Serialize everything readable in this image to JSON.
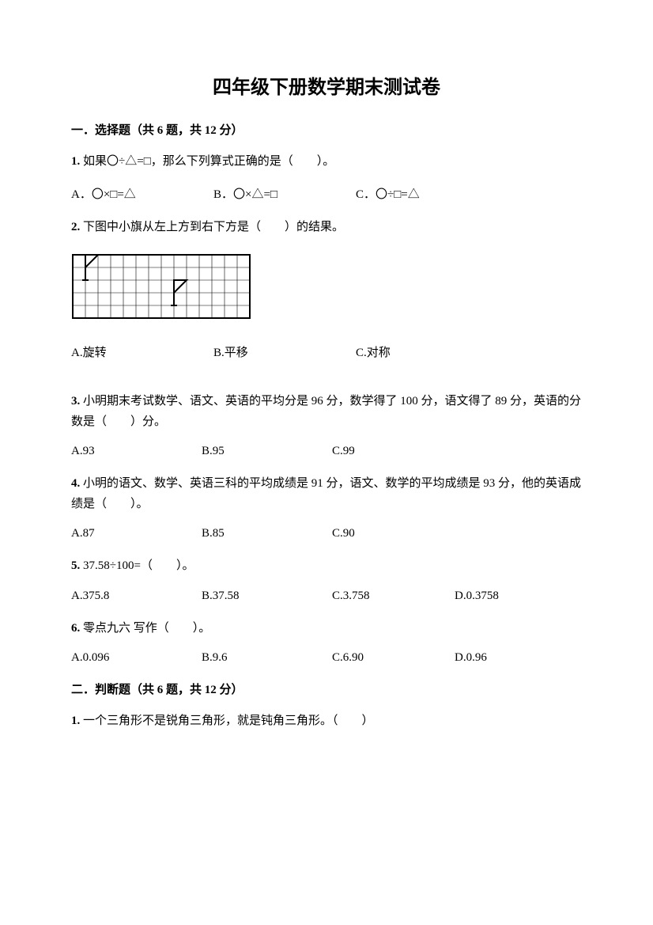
{
  "title": "四年级下册数学期末测试卷",
  "section1": {
    "header": "一．选择题（共 6 题，共 12 分）",
    "q1": {
      "num": "1.",
      "text": "如果〇÷△=□，那么下列算式正确的是（　　）。",
      "a": "A．〇×□=△",
      "b": "B．〇×△=□",
      "c": "C．〇÷□=△"
    },
    "q2": {
      "num": "2.",
      "text": "下图中小旗从左上方到右下方是（　　）的结果。",
      "a": "A.旋转",
      "b": "B.平移",
      "c": "C.对称"
    },
    "q3": {
      "num": "3.",
      "text": "小明期末考试数学、语文、英语的平均分是 96 分，数学得了 100 分，语文得了 89 分，英语的分数是（　　）分。",
      "a": "A.93",
      "b": "B.95",
      "c": "C.99"
    },
    "q4": {
      "num": "4.",
      "text": "小明的语文、数学、英语三科的平均成绩是 91 分，语文、数学的平均成绩是 93 分，他的英语成绩是（　　）。",
      "a": "A.87",
      "b": "B.85",
      "c": "C.90"
    },
    "q5": {
      "num": "5.",
      "text": "37.58÷100=（　　）。",
      "a": "A.375.8",
      "b": "B.37.58",
      "c": "C.3.758",
      "d": "D.0.3758"
    },
    "q6": {
      "num": "6.",
      "text": "零点九六 写作（　　）。",
      "a": "A.0.096",
      "b": "B.9.6",
      "c": "C.6.90",
      "d": "D.0.96"
    }
  },
  "section2": {
    "header": "二．判断题（共 6 题，共 12 分）",
    "q1": {
      "num": "1.",
      "text": "一个三角形不是锐角三角形，就是钝角三角形。（　　）"
    }
  },
  "figure": {
    "cols": 14,
    "rows": 5,
    "cell": 16,
    "stroke": "#000000",
    "flag1": {
      "baseCol": 1,
      "baseRow": 2,
      "poleUp": 2,
      "flagW": 1
    },
    "flag2": {
      "baseCol": 8,
      "baseRow": 4,
      "poleUp": 2,
      "flagW": 1
    }
  }
}
